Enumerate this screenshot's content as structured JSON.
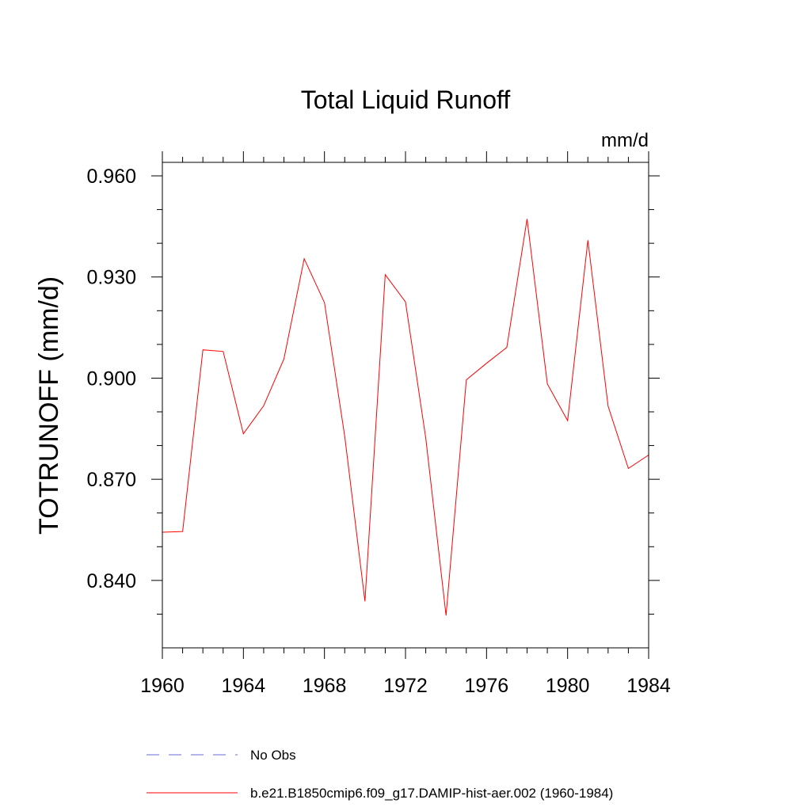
{
  "chart_data": {
    "type": "line",
    "title": "Total Liquid Runoff",
    "units": "mm/d",
    "xlabel": "",
    "ylabel": "TOTRUNOFF  (mm/d)",
    "xlim": [
      1960,
      1984
    ],
    "ylim": [
      0.82,
      0.964
    ],
    "x_ticks": [
      1960,
      1964,
      1968,
      1972,
      1976,
      1980,
      1984
    ],
    "x_tick_labels": [
      "1960",
      "1964",
      "1968",
      "1972",
      "1976",
      "1980",
      "1984"
    ],
    "y_ticks": [
      0.84,
      0.87,
      0.9,
      0.93,
      0.96
    ],
    "y_tick_labels": [
      "0.840",
      "0.870",
      "0.900",
      "0.930",
      "0.960"
    ],
    "grid": false,
    "legend_position": "bottom",
    "legend": [
      {
        "label": "No Obs",
        "color": "#6a6ad8",
        "style": "dashed"
      },
      {
        "label": "b.e21.B1850cmip6.f09_g17.DAMIP-hist-aer.002 (1960-1984)",
        "color": "#ff0000",
        "style": "solid"
      }
    ],
    "series": [
      {
        "name": "b.e21.B1850cmip6.f09_g17.DAMIP-hist-aer.002 (1960-1984)",
        "color": "#ff0000",
        "x": [
          1960,
          1961,
          1962,
          1963,
          1964,
          1965,
          1966,
          1967,
          1968,
          1969,
          1970,
          1971,
          1972,
          1973,
          1974,
          1975,
          1976,
          1977,
          1978,
          1979,
          1980,
          1981,
          1982,
          1983,
          1984
        ],
        "values": [
          0.8543,
          0.8545,
          0.9084,
          0.9079,
          0.8835,
          0.8918,
          0.9057,
          0.9354,
          0.9224,
          0.8827,
          0.8338,
          0.9307,
          0.9226,
          0.8822,
          0.8296,
          0.8995,
          0.9044,
          0.9091,
          0.9472,
          0.8983,
          0.8874,
          0.9409,
          0.8917,
          0.8732,
          0.8772
        ]
      }
    ]
  }
}
